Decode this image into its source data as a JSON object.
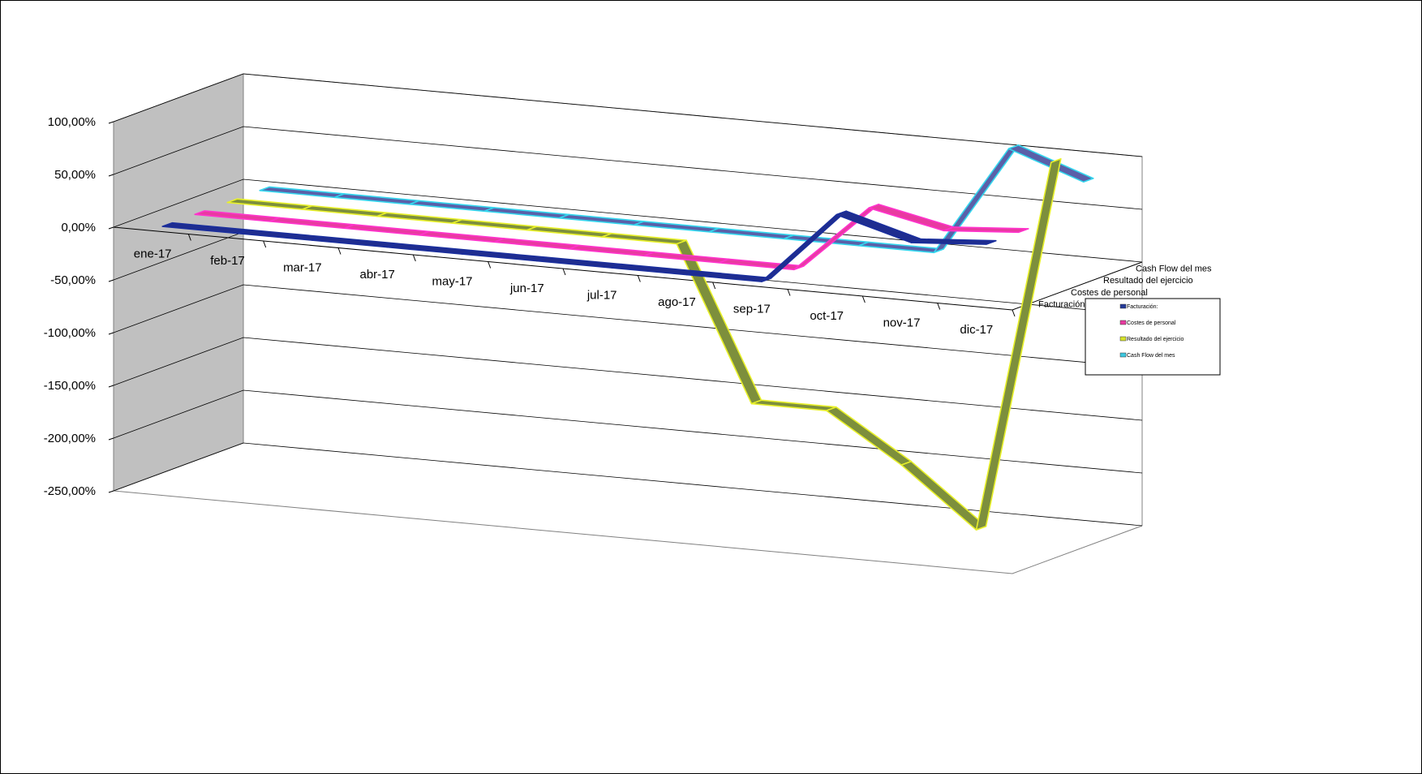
{
  "chart_data": {
    "type": "line",
    "view": "3d",
    "categories": [
      "ene-17",
      "feb-17",
      "mar-17",
      "abr-17",
      "may-17",
      "jun-17",
      "jul-17",
      "ago-17",
      "sep-17",
      "oct-17",
      "nov-17",
      "dic-17"
    ],
    "y_ticks": [
      "100,00%",
      "50,00%",
      "0,00%",
      "-50,00%",
      "-100,00%",
      "-150,00%",
      "-200,00%",
      "-250,00%"
    ],
    "ylim": [
      -250,
      100
    ],
    "depth_labels": [
      "Facturación:",
      "Costes de personal",
      "Resultado del ejercicio",
      "Cash Flow del mes"
    ],
    "gridlines": true,
    "legend_position": "right",
    "series": [
      {
        "name": "Facturación:",
        "color": "#1f2d8f",
        "values": [
          0,
          0,
          0,
          0,
          0,
          0,
          0,
          0,
          0,
          70,
          50,
          55
        ]
      },
      {
        "name": "Costes de personal",
        "color": "#e83aa0",
        "values": [
          0,
          0,
          0,
          0,
          0,
          0,
          0,
          0,
          0,
          65,
          50,
          55
        ]
      },
      {
        "name": "Resultado del ejercicio",
        "color": "#7d8f3c",
        "values": [
          0,
          0,
          0,
          0,
          0,
          0,
          0,
          -145,
          -145,
          -190,
          -245,
          110
        ]
      },
      {
        "name": "Cash Flow del mes",
        "color": "#5a60a8",
        "values": [
          0,
          0,
          0,
          0,
          0,
          0,
          0,
          0,
          0,
          0,
          105,
          80
        ]
      }
    ],
    "legend_entries": [
      "Facturación:",
      "Costes de personal",
      "Resultado del ejercicio",
      "Cash Flow del mes"
    ],
    "legend_swatches": [
      "#243a99",
      "#e83aa0",
      "#d6e32a",
      "#3cc8e0"
    ]
  }
}
